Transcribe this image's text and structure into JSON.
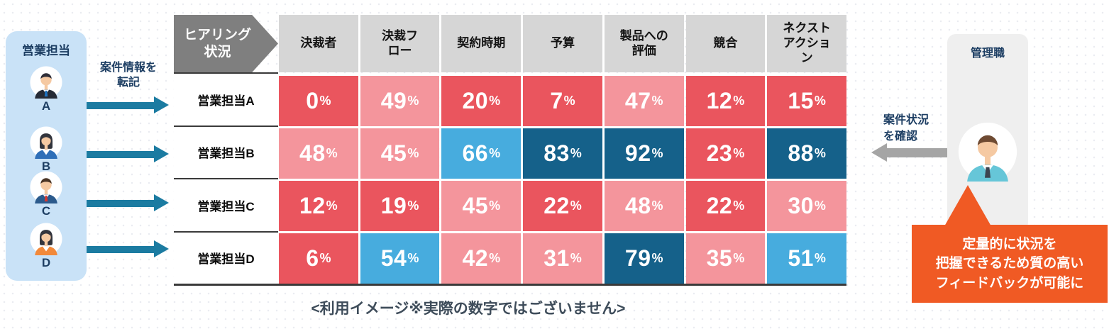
{
  "colors": {
    "cell_red": "#ea555e",
    "cell_pink": "#f4959c",
    "cell_blue_mid": "#47acde",
    "cell_blue_dark": "#15618a",
    "header_gray": "#d6d6d6",
    "corner_gray": "#7f7f7f",
    "panel_blue": "#c9e2f7",
    "panel_gray": "#efefef",
    "arrow_teal": "#1b7ba1",
    "arrow_gray": "#a5a5a5",
    "accent_orange": "#f05a24",
    "navy_text": "#1d3e63",
    "caption_text": "#3e4c5a"
  },
  "left_panel": {
    "title": "営業担当",
    "members": [
      {
        "label": "A",
        "avatar": "male-blue-tie"
      },
      {
        "label": "B",
        "avatar": "female-blue"
      },
      {
        "label": "C",
        "avatar": "male-red-tie"
      },
      {
        "label": "D",
        "avatar": "female-orange"
      }
    ]
  },
  "transfer_label": "案件情報を\n転記",
  "table": {
    "corner_label": "ヒアリング\n状況",
    "columns": [
      "決裁者",
      "決裁フ\nロー",
      "契約時期",
      "予算",
      "製品への\n評価",
      "競合",
      "ネクスト\nアクショ\nン"
    ],
    "rows": [
      {
        "label": "営業担当A",
        "values": [
          0,
          49,
          20,
          7,
          47,
          12,
          15
        ]
      },
      {
        "label": "営業担当B",
        "values": [
          48,
          45,
          66,
          83,
          92,
          23,
          88
        ]
      },
      {
        "label": "営業担当C",
        "values": [
          12,
          19,
          45,
          22,
          48,
          22,
          30
        ]
      },
      {
        "label": "営業担当D",
        "values": [
          6,
          54,
          42,
          31,
          79,
          35,
          51
        ]
      }
    ],
    "unit": "%"
  },
  "caption": "<利用イメージ※実際の数字ではございません>",
  "manager_panel": {
    "title": "管理職",
    "avatar": "male-teal"
  },
  "check_label": "案件状況\nを確認",
  "bubble": {
    "lines": [
      "定量的に状況を",
      "把握できるため質の高い",
      "フィードバックが可能に"
    ]
  },
  "avatars": {
    "skin": "#f5c9a2",
    "male-blue-tie": {
      "gender": "male",
      "hair": "#2e2e38",
      "top": "#262b36",
      "tie": "#1e73c2"
    },
    "female-blue": {
      "gender": "female",
      "hair": "#32343c",
      "top": "#2f6fb8"
    },
    "male-red-tie": {
      "gender": "male",
      "hair": "#4a3526",
      "top": "#2b5a8c",
      "tie": "#d8372f"
    },
    "female-orange": {
      "gender": "female",
      "hair": "#32343c",
      "top": "#f2893a"
    },
    "male-teal": {
      "gender": "male",
      "hair": "#6e4a32",
      "top": "#66c6d8",
      "tie": "#3c4450"
    }
  },
  "chart_data": {
    "type": "heatmap",
    "title": "ヒアリング状況",
    "x_labels": [
      "決裁者",
      "決裁フロー",
      "契約時期",
      "予算",
      "製品への評価",
      "競合",
      "ネクストアクション"
    ],
    "y_labels": [
      "営業担当A",
      "営業担当B",
      "営業担当C",
      "営業担当D"
    ],
    "values": [
      [
        0,
        49,
        20,
        7,
        47,
        12,
        15
      ],
      [
        48,
        45,
        66,
        83,
        92,
        23,
        88
      ],
      [
        12,
        19,
        45,
        22,
        48,
        22,
        30
      ],
      [
        6,
        54,
        42,
        31,
        79,
        35,
        51
      ]
    ],
    "unit": "%",
    "color_scale": [
      {
        "range": "0-29",
        "color": "#ea555e"
      },
      {
        "range": "30-49",
        "color": "#f4959c"
      },
      {
        "range": "50-69",
        "color": "#47acde"
      },
      {
        "range": "70-100",
        "color": "#15618a"
      }
    ]
  }
}
